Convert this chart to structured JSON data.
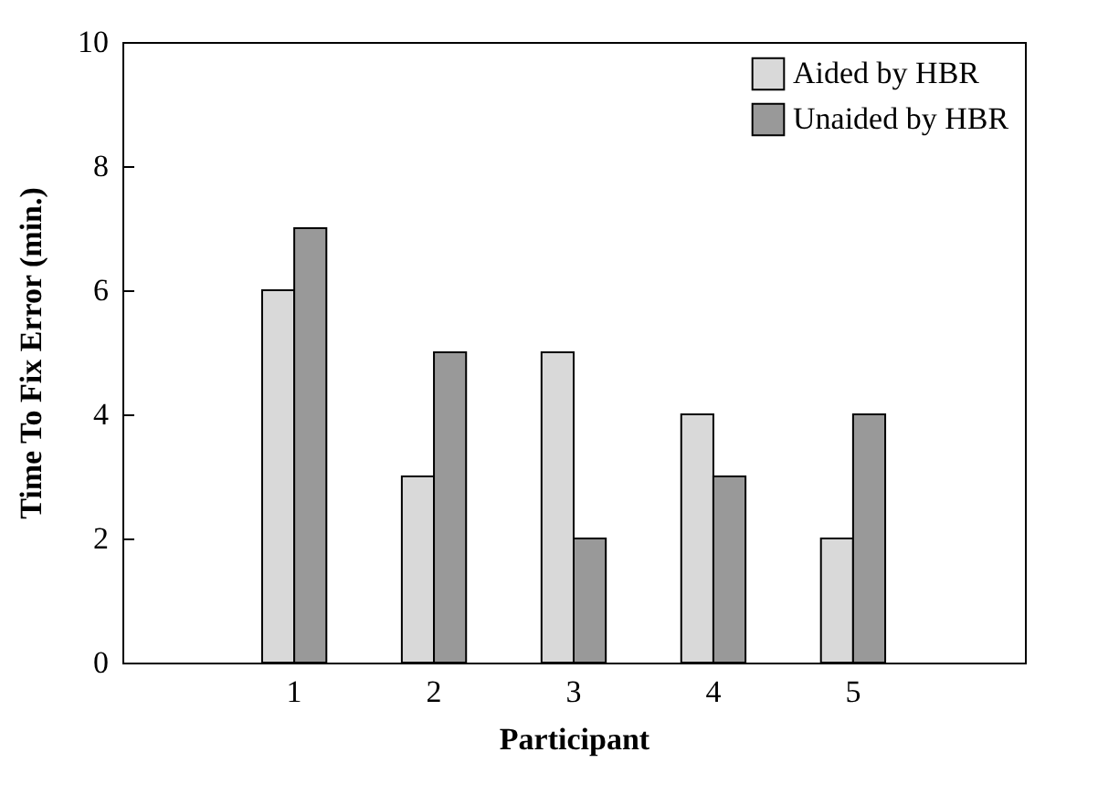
{
  "chart_data": {
    "type": "bar",
    "xlabel": "Participant",
    "ylabel": "Time To Fix Error (min.)",
    "categories": [
      "1",
      "2",
      "3",
      "4",
      "5"
    ],
    "series": [
      {
        "name": "Aided by HBR",
        "color": "#d9d9d9",
        "values": [
          6,
          3,
          5,
          4,
          2
        ]
      },
      {
        "name": "Unaided by HBR",
        "color": "#999999",
        "values": [
          7,
          5,
          2,
          3,
          4
        ]
      }
    ],
    "ylim": [
      0,
      10
    ],
    "yticks": [
      0,
      2,
      4,
      6,
      8,
      10
    ],
    "grid": false,
    "legend": "top right"
  }
}
